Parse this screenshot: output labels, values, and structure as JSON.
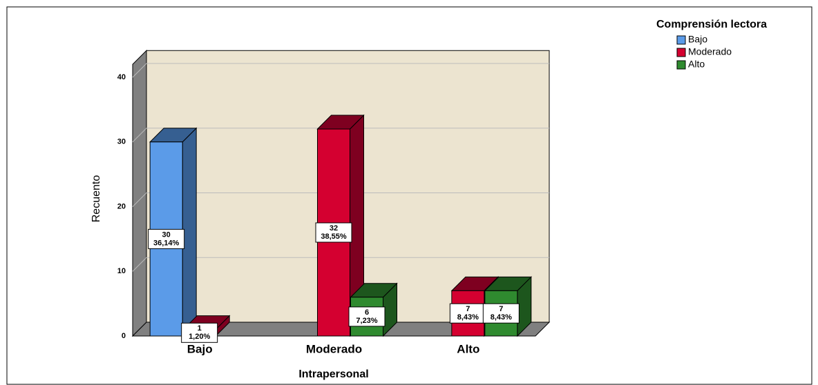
{
  "chart_data": {
    "type": "bar3d",
    "x_label": "Intrapersonal",
    "y_label": "Recuento",
    "legend_title": "Comprensión lectora",
    "legend": "top-right",
    "categories": [
      "Bajo",
      "Moderado",
      "Alto"
    ],
    "series": [
      {
        "name": "Bajo",
        "color": "#5b9be8",
        "side_color": "#365f91",
        "values": [
          30,
          null,
          null
        ],
        "percent_labels": [
          "36,14%",
          null,
          null
        ]
      },
      {
        "name": "Moderado",
        "color": "#d40030",
        "side_color": "#7e0020",
        "values": [
          1,
          32,
          7
        ],
        "percent_labels": [
          "1,20%",
          "38,55%",
          "8,43%"
        ]
      },
      {
        "name": "Alto",
        "color": "#2f8a2f",
        "side_color": "#1d561d",
        "values": [
          null,
          6,
          7
        ],
        "percent_labels": [
          null,
          "7,23%",
          "8,43%"
        ]
      }
    ],
    "ylim": [
      0,
      42
    ],
    "yticks": [
      0,
      10,
      20,
      30,
      40
    ],
    "grid": true
  }
}
